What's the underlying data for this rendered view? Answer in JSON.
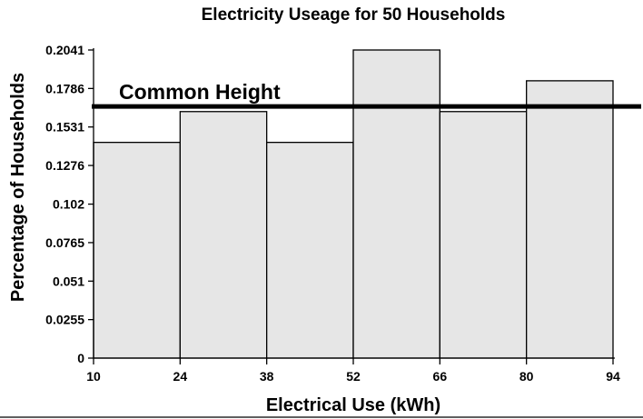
{
  "chart_data": {
    "type": "bar",
    "title": "Electricity Useage for 50 Households",
    "xlabel": "Electrical Use (kWh)",
    "ylabel": "Percentage of Households",
    "bin_edges": [
      10,
      24,
      38,
      52,
      66,
      80,
      94
    ],
    "values": [
      0.1429,
      0.1633,
      0.1429,
      0.2041,
      0.1633,
      0.1837
    ],
    "x_ticks": [
      "10",
      "24",
      "38",
      "52",
      "66",
      "80",
      "94"
    ],
    "y_ticks": [
      "0",
      "0.0255",
      "0.051",
      "0.0765",
      "0.102",
      "0.1276",
      "0.1531",
      "0.1786",
      "0.2041"
    ],
    "xlim": [
      10,
      94
    ],
    "ylim": [
      0,
      0.2041
    ],
    "annotation": {
      "text": "Common Height",
      "value": 0.1667
    },
    "grid": false,
    "colors": {
      "bar_fill": "#e6e6e6",
      "bar_stroke": "#000000"
    }
  }
}
